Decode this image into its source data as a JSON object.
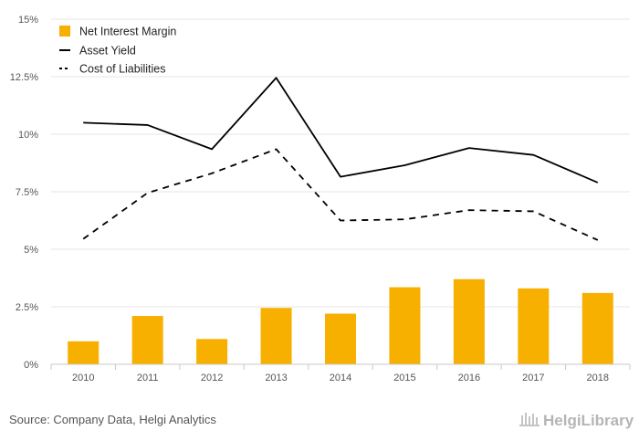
{
  "chart_data": {
    "type": "bar",
    "categories": [
      "2010",
      "2011",
      "2012",
      "2013",
      "2014",
      "2015",
      "2016",
      "2017",
      "2018"
    ],
    "series": [
      {
        "name": "Net Interest Margin",
        "type": "bar",
        "color": "#F7B000",
        "values": [
          1.0,
          2.1,
          1.1,
          2.45,
          2.2,
          3.35,
          3.7,
          3.3,
          3.1
        ]
      },
      {
        "name": "Asset Yield",
        "type": "line",
        "style": "solid",
        "color": "#000000",
        "values": [
          10.5,
          10.4,
          9.35,
          12.45,
          8.15,
          8.65,
          9.4,
          9.1,
          7.9
        ]
      },
      {
        "name": "Cost of Liabilities",
        "type": "line",
        "style": "dashed",
        "color": "#000000",
        "values": [
          5.45,
          7.45,
          8.3,
          9.35,
          6.25,
          6.3,
          6.7,
          6.65,
          5.4
        ]
      }
    ],
    "yticks": [
      "0%",
      "2.5%",
      "5%",
      "7.5%",
      "10%",
      "12.5%",
      "15%"
    ],
    "ylim": [
      0,
      15
    ],
    "grid": "horizontal",
    "legend_position": "top-left"
  },
  "footer": {
    "source": "Source: Company Data, Helgi Analytics",
    "brand": "HelgiLibrary"
  }
}
